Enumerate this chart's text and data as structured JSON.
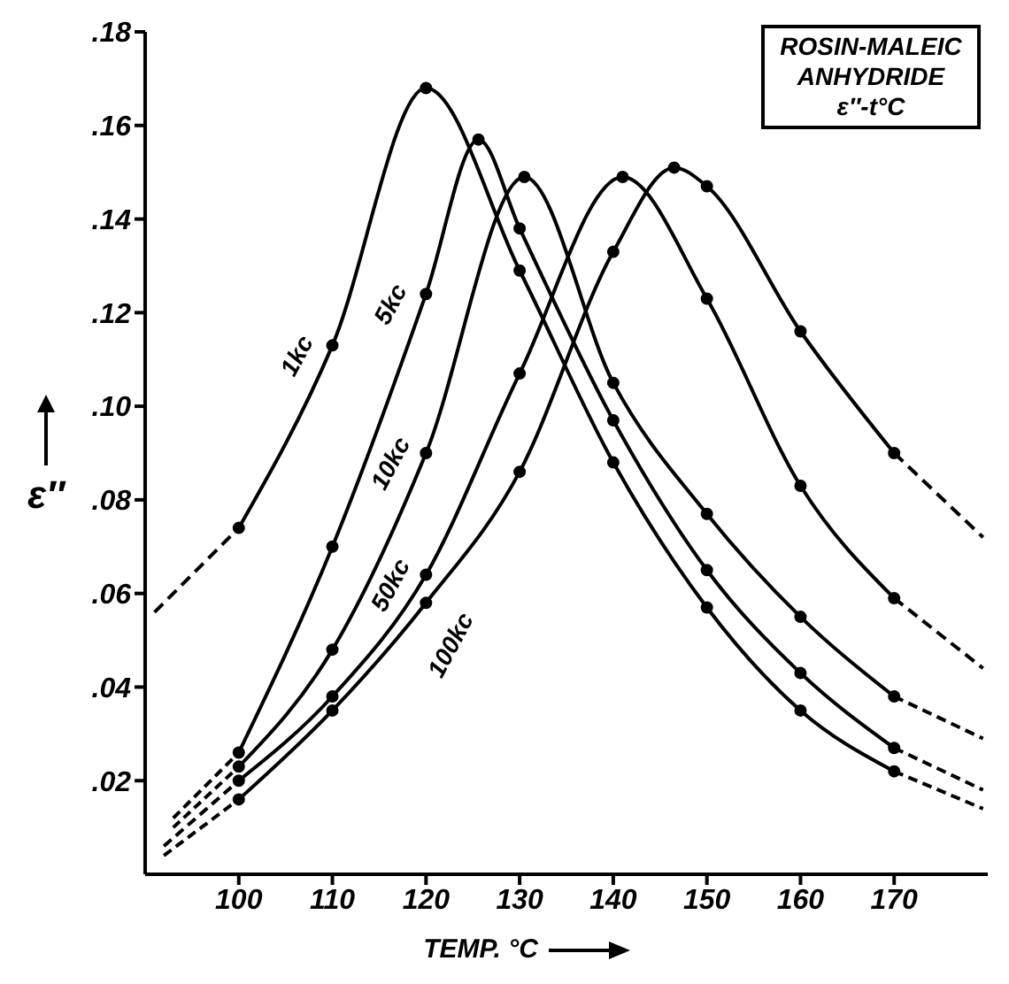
{
  "chart_data": {
    "type": "line",
    "title": "ROSIN-MALEIC ANHYDRIDE ε″-t°C",
    "xlabel": "TEMP. °C",
    "ylabel": "ε″",
    "xlim": [
      90,
      180
    ],
    "xticks": [
      100,
      110,
      120,
      130,
      140,
      150,
      160,
      170
    ],
    "ylim": [
      0,
      0.18
    ],
    "yticks": [
      {
        "value": 0.02,
        "label": ".02"
      },
      {
        "value": 0.04,
        "label": ".04"
      },
      {
        "value": 0.06,
        "label": ".06"
      },
      {
        "value": 0.08,
        "label": ".08"
      },
      {
        "value": 0.1,
        "label": ".10"
      },
      {
        "value": 0.12,
        "label": ".12"
      },
      {
        "value": 0.14,
        "label": ".14"
      },
      {
        "value": 0.16,
        "label": ".16"
      },
      {
        "value": 0.18,
        "label": ".18"
      }
    ],
    "grid": false,
    "legend": false,
    "marker": "circle",
    "line_style": "solid",
    "series": [
      {
        "name": "1kc",
        "color": "#000000",
        "x": [
          100,
          110,
          120,
          130,
          140,
          150,
          160,
          170
        ],
        "values": [
          0.074,
          0.113,
          0.168,
          0.129,
          0.088,
          0.057,
          0.035,
          0.022
        ]
      },
      {
        "name": "5kc",
        "color": "#000000",
        "x": [
          100,
          110,
          120,
          125.6,
          130,
          140,
          150,
          160,
          170
        ],
        "values": [
          0.026,
          0.07,
          0.124,
          0.157,
          0.138,
          0.097,
          0.065,
          0.043,
          0.027
        ]
      },
      {
        "name": "10kc",
        "color": "#000000",
        "x": [
          100,
          110,
          120,
          130.5,
          140,
          150,
          160,
          170
        ],
        "values": [
          0.023,
          0.048,
          0.09,
          0.149,
          0.105,
          0.077,
          0.055,
          0.038
        ]
      },
      {
        "name": "50kc",
        "color": "#000000",
        "x": [
          100,
          110,
          120,
          130,
          141,
          150,
          160,
          170
        ],
        "values": [
          0.02,
          0.038,
          0.064,
          0.107,
          0.149,
          0.123,
          0.083,
          0.059
        ]
      },
      {
        "name": "100kc",
        "color": "#000000",
        "x": [
          100,
          110,
          120,
          130,
          140,
          146.5,
          150,
          160,
          170
        ],
        "values": [
          0.016,
          0.035,
          0.058,
          0.086,
          0.133,
          0.151,
          0.147,
          0.116,
          0.09
        ]
      },
      {
        "color": "#000000",
        "line_style": "dashed",
        "marker": "none",
        "x": [
          91,
          100
        ],
        "values": [
          0.056,
          0.074
        ]
      },
      {
        "color": "#000000",
        "line_style": "dashed",
        "marker": "none",
        "x": [
          170,
          179.5
        ],
        "values": [
          0.022,
          0.014
        ]
      },
      {
        "color": "#000000",
        "line_style": "dashed",
        "marker": "none",
        "x": [
          93,
          100
        ],
        "values": [
          0.012,
          0.026
        ]
      },
      {
        "color": "#000000",
        "line_style": "dashed",
        "marker": "none",
        "x": [
          170,
          179.5
        ],
        "values": [
          0.027,
          0.018
        ]
      },
      {
        "color": "#000000",
        "line_style": "dashed",
        "marker": "none",
        "x": [
          93,
          100
        ],
        "values": [
          0.01,
          0.023
        ]
      },
      {
        "color": "#000000",
        "line_style": "dashed",
        "marker": "none",
        "x": [
          170,
          179.5
        ],
        "values": [
          0.038,
          0.029
        ]
      },
      {
        "color": "#000000",
        "line_style": "dashed",
        "marker": "none",
        "x": [
          92,
          100
        ],
        "values": [
          0.006,
          0.02
        ]
      },
      {
        "color": "#000000",
        "line_style": "dashed",
        "marker": "none",
        "x": [
          170,
          179.5
        ],
        "values": [
          0.059,
          0.044
        ]
      },
      {
        "color": "#000000",
        "line_style": "dashed",
        "marker": "none",
        "x": [
          92,
          100
        ],
        "values": [
          0.004,
          0.016
        ]
      },
      {
        "color": "#000000",
        "line_style": "dashed",
        "marker": "none",
        "x": [
          170,
          179.5
        ],
        "values": [
          0.09,
          0.072
        ]
      }
    ]
  }
}
